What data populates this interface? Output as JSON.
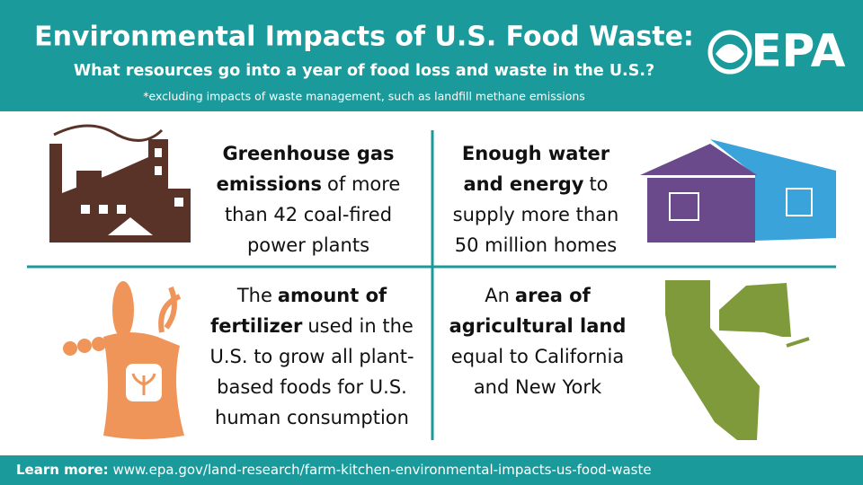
{
  "header": {
    "title": "Environmental Impacts of U.S. Food Waste:",
    "subtitle": "What resources go into a year of food loss and waste in the U.S.?",
    "note": "*excluding impacts of waste management, such as landfill methane emissions",
    "logo": "EPA"
  },
  "panels": [
    {
      "lines": [
        [
          {
            "text": "Greenhouse gas",
            "bold": true
          }
        ],
        [
          {
            "text": "emissions",
            "bold": true
          },
          {
            "text": "of more",
            "bold": false
          }
        ],
        [
          {
            "text": "than 42 coal-fired",
            "bold": false
          }
        ],
        [
          {
            "text": "power plants",
            "bold": false
          }
        ]
      ]
    },
    {
      "lines": [
        [
          {
            "text": "Enough water",
            "bold": true
          }
        ],
        [
          {
            "text": "and energy",
            "bold": true
          },
          {
            "text": "to",
            "bold": false
          }
        ],
        [
          {
            "text": "supply more than",
            "bold": false
          }
        ],
        [
          {
            "text": "50 million homes",
            "bold": false
          }
        ]
      ]
    },
    {
      "lines": [
        [
          {
            "text": "The",
            "bold": false
          },
          {
            "text": "amount of",
            "bold": true
          }
        ],
        [
          {
            "text": "fertilizer",
            "bold": true
          },
          {
            "text": "used in the",
            "bold": false
          }
        ],
        [
          {
            "text": "U.S. to grow all plant-",
            "bold": false
          }
        ],
        [
          {
            "text": "based foods for U.S.",
            "bold": false
          }
        ],
        [
          {
            "text": "human consumption",
            "bold": false
          }
        ]
      ]
    },
    {
      "lines": [
        [
          {
            "text": "An",
            "bold": false
          },
          {
            "text": "area of",
            "bold": true
          }
        ],
        [
          {
            "text": "agricultural land",
            "bold": true
          }
        ],
        [
          {
            "text": "equal to California",
            "bold": false
          }
        ],
        [
          {
            "text": "and New York",
            "bold": false
          }
        ]
      ]
    }
  ],
  "footer": {
    "label": "Learn more:",
    "url": "www.epa.gov/land-research/farm-kitchen-environmental-impacts-us-food-waste"
  }
}
